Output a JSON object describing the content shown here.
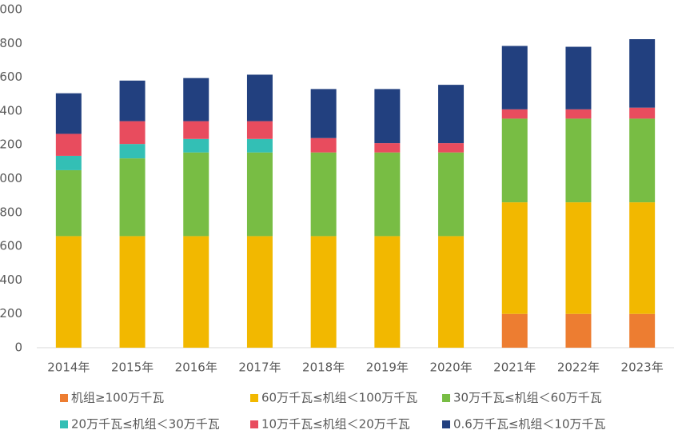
{
  "chart_data": {
    "type": "stacked_bar",
    "categories": [
      "2014年",
      "2015年",
      "2016年",
      "2017年",
      "2018年",
      "2019年",
      "2020年",
      "2021年",
      "2022年",
      "2023年"
    ],
    "series": [
      {
        "name": "机组≥100万千瓦",
        "color": "#ed7d31",
        "values": [
          0,
          0,
          0,
          0,
          0,
          0,
          0,
          200,
          200,
          200
        ]
      },
      {
        "name": "60万千瓦≤机组＜100万千瓦",
        "color": "#f2b800",
        "values": [
          660,
          660,
          660,
          660,
          660,
          660,
          660,
          660,
          660,
          660
        ]
      },
      {
        "name": "30万千瓦≤机组＜60万千瓦",
        "color": "#78bd44",
        "values": [
          390,
          460,
          495,
          495,
          495,
          495,
          495,
          495,
          495,
          495
        ]
      },
      {
        "name": "20万千瓦≤机组＜30万千瓦",
        "color": "#33bfb5",
        "values": [
          85,
          85,
          80,
          80,
          0,
          0,
          0,
          0,
          0,
          0
        ]
      },
      {
        "name": "10万千瓦≤机组＜20万千瓦",
        "color": "#e84c5e",
        "values": [
          130,
          135,
          105,
          105,
          85,
          55,
          55,
          55,
          55,
          65
        ]
      },
      {
        "name": "0.6万千瓦≤机组＜10万千瓦",
        "color": "#22407f",
        "values": [
          240,
          240,
          255,
          275,
          290,
          320,
          345,
          375,
          370,
          405
        ]
      }
    ],
    "ylim": [
      0,
      2000
    ],
    "yticks": [
      0,
      200,
      400,
      600,
      800,
      1000,
      1200,
      1400,
      1600,
      1800,
      2000
    ],
    "legend": "bottom"
  }
}
